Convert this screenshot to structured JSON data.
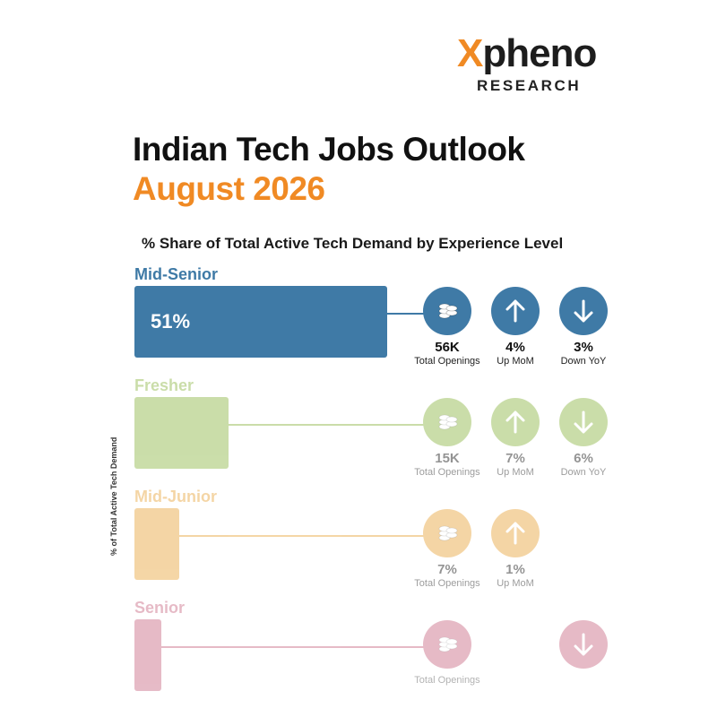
{
  "brand": {
    "name_x": "X",
    "name_rest": "pheno",
    "sub": "RESEARCH"
  },
  "title": "Indian Tech Jobs Outlook",
  "subtitle": "August 2026",
  "chart_data": {
    "type": "bar",
    "title": "% Share of Total Active Tech Demand by Experience Level",
    "ylabel": "% of Total Active Tech Demand",
    "categories": [
      "Mid-Senior",
      "Fresher",
      "Mid-Junior",
      "Senior"
    ],
    "values": [
      51,
      19,
      9,
      5
    ],
    "value_labels": [
      "51%",
      "",
      "",
      ""
    ],
    "metrics": [
      {
        "openings": "56K",
        "openings_label": "Total Openings",
        "mom": "4%",
        "mom_label": "Up MoM",
        "yoy": "3%",
        "yoy_label": "Down YoY"
      },
      {
        "openings": "15K",
        "openings_label": "Total Openings",
        "mom": "7%",
        "mom_label": "Up MoM",
        "yoy": "6%",
        "yoy_label": "Down YoY"
      },
      {
        "openings": "7%",
        "openings_label": "Total Openings",
        "mom": "1%",
        "mom_label": "Up MoM",
        "yoy": "",
        "yoy_label": ""
      },
      {
        "openings": "",
        "openings_label": "Total Openings",
        "mom": "",
        "mom_label": "",
        "yoy": "",
        "yoy_label": ""
      }
    ],
    "colors": [
      "#3f7aa6",
      "#8cb543",
      "#e8a33a",
      "#b83b5e"
    ]
  }
}
